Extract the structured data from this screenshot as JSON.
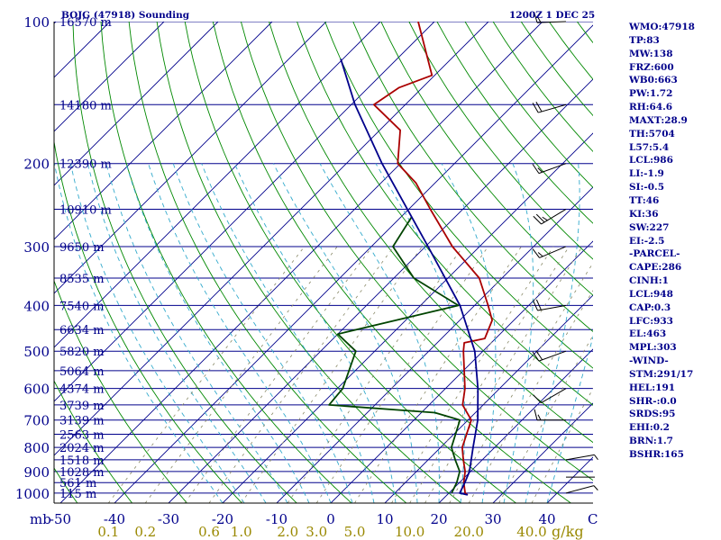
{
  "chart_data": {
    "type": "line",
    "title_left": "BOJG (47918) Sounding",
    "title_right": "1200Z  1 DEC 25",
    "y_axis_unit": "mb",
    "x_axis_unit": "°C",
    "mixing_ratio_unit": "g/kg",
    "pressure_ticks": [
      100,
      200,
      300,
      400,
      500,
      600,
      700,
      800,
      900,
      1000
    ],
    "temperature_ticks": [
      -50,
      -40,
      -30,
      -20,
      -10,
      0,
      10,
      20,
      30,
      40
    ],
    "temperature_tick_labels": [
      "-50",
      "-40",
      "-30",
      "-20",
      "-10",
      "0",
      "10",
      "20",
      "30",
      "40"
    ],
    "x_axis_end_label": "C",
    "mixing_ratio_ticks": [
      0.1,
      0.2,
      0.6,
      1.0,
      2.0,
      3.0,
      5.0,
      10.0,
      20.0,
      40.0
    ],
    "mixing_ratio_tick_labels": [
      "0.1",
      "0.2",
      "0.6",
      "1.0",
      "2.0",
      "3.0",
      "5.0",
      "10.0",
      "20.0",
      "40.0"
    ],
    "height_levels": [
      {
        "p": 100,
        "label": "16570 m"
      },
      {
        "p": 150,
        "label": "14180 m"
      },
      {
        "p": 200,
        "label": "12390 m"
      },
      {
        "p": 250,
        "label": "10910 m"
      },
      {
        "p": 300,
        "label": "9650 m"
      },
      {
        "p": 350,
        "label": "8535 m"
      },
      {
        "p": 400,
        "label": "7540 m"
      },
      {
        "p": 450,
        "label": "6634 m"
      },
      {
        "p": 500,
        "label": "5820 m"
      },
      {
        "p": 550,
        "label": "5064 m"
      },
      {
        "p": 600,
        "label": "4374 m"
      },
      {
        "p": 650,
        "label": "3739 m"
      },
      {
        "p": 700,
        "label": "3139 m"
      },
      {
        "p": 750,
        "label": "2563 m"
      },
      {
        "p": 800,
        "label": "2024 m"
      },
      {
        "p": 850,
        "label": "1518 m"
      },
      {
        "p": 900,
        "label": "1028 m"
      },
      {
        "p": 950,
        "label": "561 m"
      },
      {
        "p": 1000,
        "label": "115 m"
      }
    ],
    "series": [
      {
        "name": "Temperature",
        "color": "#aa0000",
        "points": [
          [
            1009,
            23.8
          ],
          [
            1000,
            23.0
          ],
          [
            950,
            20.8
          ],
          [
            900,
            19.0
          ],
          [
            850,
            16.5
          ],
          [
            800,
            14.0
          ],
          [
            700,
            10.6
          ],
          [
            650,
            6.2
          ],
          [
            600,
            3.6
          ],
          [
            500,
            -3.6
          ],
          [
            480,
            -5.0
          ],
          [
            470,
            -2.0
          ],
          [
            430,
            -4.0
          ],
          [
            400,
            -7.5
          ],
          [
            350,
            -14.2
          ],
          [
            300,
            -25.0
          ],
          [
            250,
            -36.0
          ],
          [
            220,
            -43.5
          ],
          [
            200,
            -50.5
          ],
          [
            170,
            -56.2
          ],
          [
            150,
            -65.8
          ],
          [
            138,
            -64.3
          ],
          [
            130,
            -60.5
          ],
          [
            100,
            -73.0
          ]
        ]
      },
      {
        "name": "Dewpoint",
        "color": "#004400",
        "points": [
          [
            1000,
            20.5
          ],
          [
            950,
            19.5
          ],
          [
            900,
            18.0
          ],
          [
            850,
            15.0
          ],
          [
            800,
            12.0
          ],
          [
            700,
            8.5
          ],
          [
            675,
            2.5
          ],
          [
            650,
            -18.5
          ],
          [
            600,
            -19.0
          ],
          [
            500,
            -23.5
          ],
          [
            460,
            -30.0
          ],
          [
            400,
            -13.0
          ],
          [
            350,
            -26.3
          ],
          [
            300,
            -36.0
          ],
          [
            260,
            -38.0
          ]
        ]
      },
      {
        "name": "Parcel",
        "color": "#00008b",
        "points": [
          [
            1009,
            23.8
          ],
          [
            1000,
            22.0
          ],
          [
            950,
            21.0
          ],
          [
            900,
            19.8
          ],
          [
            800,
            16.0
          ],
          [
            700,
            11.8
          ],
          [
            600,
            6.0
          ],
          [
            500,
            -1.5
          ],
          [
            400,
            -12.7
          ],
          [
            300,
            -29.5
          ],
          [
            200,
            -53.4
          ],
          [
            150,
            -69.3
          ],
          [
            120,
            -80.4
          ]
        ]
      }
    ],
    "winds": [
      {
        "p": 100,
        "dir": 268,
        "spd": 18
      },
      {
        "p": 150,
        "dir": 254,
        "spd": 22
      },
      {
        "p": 200,
        "dir": 250,
        "spd": 18
      },
      {
        "p": 250,
        "dir": 239,
        "spd": 25
      },
      {
        "p": 300,
        "dir": 247,
        "spd": 18
      },
      {
        "p": 400,
        "dir": 260,
        "spd": 20
      },
      {
        "p": 500,
        "dir": 250,
        "spd": 23
      },
      {
        "p": 600,
        "dir": 240,
        "spd": 10
      },
      {
        "p": 700,
        "dir": 270,
        "spd": 15
      },
      {
        "p": 850,
        "dir": 80,
        "spd": 5
      },
      {
        "p": 925,
        "dir": 90,
        "spd": 4
      },
      {
        "p": 1000,
        "dir": 75,
        "spd": 5
      }
    ]
  },
  "stats": [
    "WMO:47918",
    "TP:83",
    "MW:138",
    "FRZ:600",
    "WB0:663",
    "PW:1.72",
    "RH:64.6",
    "MAXT:28.9",
    "TH:5704",
    "L57:5.4",
    "LCL:986",
    "LI:-1.9",
    "SI:-0.5",
    "TT:46",
    "KI:36",
    "SW:227",
    "EI:-2.5",
    "-PARCEL-",
    "CAPE:286",
    "CINH:1",
    "LCL:948",
    "CAP:0.3",
    "LFC:933",
    "EL:463",
    "MPL:303",
    "-WIND-",
    "STM:291/17",
    "HEL:191",
    "SHR-:0.0",
    "SRDS:95",
    "EHI:0.2",
    "BRN:1.7",
    "BSHR:165"
  ],
  "colors": {
    "isobar": "#00008b",
    "isotherm": "#00008b",
    "dry_adiabat": "#008800",
    "moist_adiabat": "#33aacc",
    "mixing_ratio": "#888866",
    "title": "#00008b",
    "mixing_label": "#998800"
  }
}
